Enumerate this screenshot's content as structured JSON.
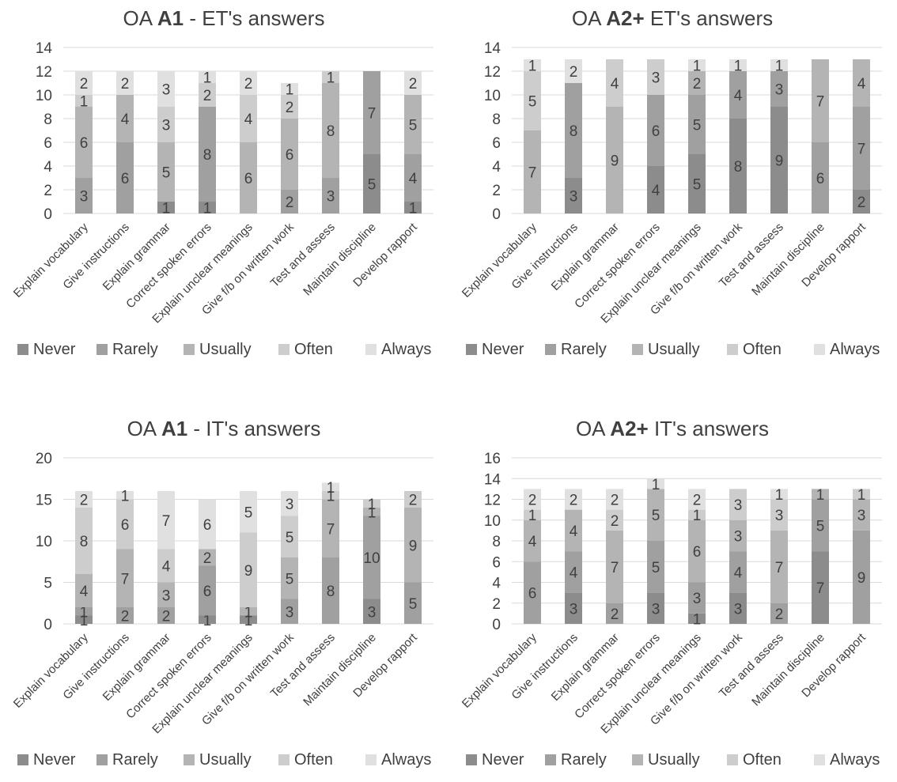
{
  "legend": [
    "Never",
    "Rarely",
    "Usually",
    "Often",
    "Always"
  ],
  "series_colors": [
    "#8c8c8c",
    "#a0a0a0",
    "#b4b4b4",
    "#cdcdcd",
    "#e0e0e0"
  ],
  "chart_data": [
    {
      "type": "bar",
      "stacked": true,
      "title_parts": [
        "OA ",
        "A1",
        " - ET's answers"
      ],
      "categories": [
        "Explain vocabulary",
        "Give instructions",
        "Explain grammar",
        "Correct spoken errors",
        "Explain unclear meanings",
        "Give f/b on written work",
        "Test and assess",
        "Maintain discipline",
        "Develop rapport"
      ],
      "ylim": [
        0,
        14
      ],
      "yticks": [
        0,
        2,
        4,
        6,
        8,
        10,
        12,
        14
      ],
      "series": [
        {
          "name": "Never",
          "values": [
            0,
            0,
            1,
            1,
            0,
            0,
            0,
            5,
            1
          ]
        },
        {
          "name": "Rarely",
          "values": [
            3,
            6,
            0,
            8,
            0,
            2,
            3,
            7,
            4
          ]
        },
        {
          "name": "Usually",
          "values": [
            6,
            4,
            5,
            0,
            6,
            6,
            8,
            0,
            5
          ]
        },
        {
          "name": "Often",
          "values": [
            1,
            0,
            3,
            2,
            4,
            2,
            1,
            0,
            0
          ]
        },
        {
          "name": "Always",
          "values": [
            2,
            2,
            3,
            1,
            2,
            1,
            0,
            0,
            2
          ]
        }
      ],
      "legend_position": "bottom",
      "grid": true
    },
    {
      "type": "bar",
      "stacked": true,
      "title_parts": [
        "OA ",
        "A2+",
        " ET's answers"
      ],
      "categories": [
        "Explain vocabulary",
        "Give instructions",
        "Explain grammar",
        "Correct spoken errors",
        "Explain unclear meanings",
        "Give f/b on written work",
        "Test and assess",
        "Maintain discipline",
        "Develop rapport"
      ],
      "ylim": [
        0,
        14
      ],
      "yticks": [
        0,
        2,
        4,
        6,
        8,
        10,
        12,
        14
      ],
      "series": [
        {
          "name": "Never",
          "values": [
            0,
            3,
            0,
            4,
            5,
            8,
            9,
            0,
            2
          ]
        },
        {
          "name": "Rarely",
          "values": [
            0,
            8,
            0,
            6,
            5,
            4,
            3,
            6,
            7
          ]
        },
        {
          "name": "Usually",
          "values": [
            7,
            0,
            9,
            0,
            2,
            0,
            0,
            7,
            4
          ]
        },
        {
          "name": "Often",
          "values": [
            5,
            0,
            4,
            3,
            0,
            0,
            0,
            0,
            0
          ]
        },
        {
          "name": "Always",
          "values": [
            1,
            2,
            0,
            0,
            1,
            1,
            1,
            0,
            0
          ]
        }
      ],
      "legend_position": "bottom",
      "grid": true
    },
    {
      "type": "bar",
      "stacked": true,
      "title_parts": [
        "OA ",
        "A1",
        " - IT's answers"
      ],
      "categories": [
        "Explain vocabulary",
        "Give instructions",
        "Explain grammar",
        "Correct spoken errors",
        "Explain unclear meanings",
        "Give f/b on written work",
        "Test and assess",
        "Maintain discipline",
        "Develop rapport"
      ],
      "ylim": [
        0,
        20
      ],
      "yticks": [
        0,
        5,
        10,
        15,
        20
      ],
      "series": [
        {
          "name": "Never",
          "values": [
            1,
            0,
            0,
            1,
            1,
            0,
            0,
            3,
            0
          ]
        },
        {
          "name": "Rarely",
          "values": [
            1,
            2,
            2,
            6,
            0,
            3,
            8,
            10,
            5
          ]
        },
        {
          "name": "Usually",
          "values": [
            4,
            7,
            3,
            2,
            1,
            5,
            7,
            1,
            9
          ]
        },
        {
          "name": "Often",
          "values": [
            8,
            6,
            4,
            0,
            9,
            5,
            1,
            1,
            2
          ]
        },
        {
          "name": "Always",
          "values": [
            2,
            1,
            7,
            6,
            5,
            3,
            1,
            0,
            0
          ]
        }
      ],
      "legend_position": "bottom",
      "grid": true
    },
    {
      "type": "bar",
      "stacked": true,
      "title_parts": [
        "OA ",
        "A2+",
        " IT's answers"
      ],
      "categories": [
        "Explain vocabulary",
        "Give instructions",
        "Explain grammar",
        "Correct spoken errors",
        "Explain unclear meanings",
        "Give f/b on written work",
        "Test and assess",
        "Maintain discipline",
        "Develop rapport"
      ],
      "ylim": [
        0,
        16
      ],
      "yticks": [
        0,
        2,
        4,
        6,
        8,
        10,
        12,
        14,
        16
      ],
      "series": [
        {
          "name": "Never",
          "values": [
            0,
            3,
            0,
            3,
            1,
            3,
            0,
            7,
            0
          ]
        },
        {
          "name": "Rarely",
          "values": [
            6,
            4,
            2,
            5,
            3,
            4,
            2,
            5,
            9
          ]
        },
        {
          "name": "Usually",
          "values": [
            4,
            4,
            7,
            5,
            6,
            3,
            7,
            1,
            3
          ]
        },
        {
          "name": "Often",
          "values": [
            1,
            0,
            2,
            0,
            1,
            3,
            3,
            0,
            1
          ]
        },
        {
          "name": "Always",
          "values": [
            2,
            2,
            2,
            1,
            2,
            0,
            1,
            0,
            0
          ]
        }
      ],
      "legend_position": "bottom",
      "grid": true
    }
  ]
}
